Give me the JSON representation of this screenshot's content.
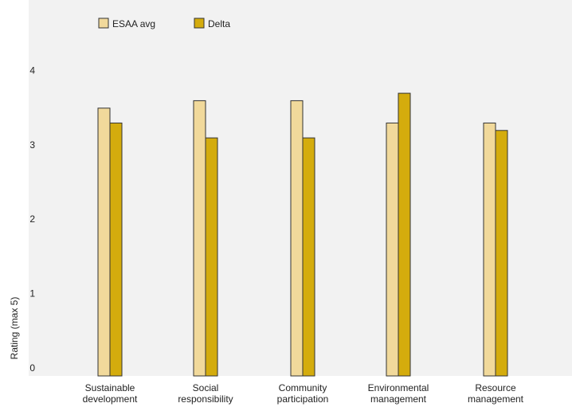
{
  "chart_data": {
    "type": "bar",
    "ylabel": "Rating (max 5)",
    "xlabel": "",
    "ylim": [
      0,
      5
    ],
    "yticks": [
      "0",
      "1",
      "2",
      "3",
      "4"
    ],
    "grid": false,
    "legend_position": "top-left",
    "categories": [
      [
        "Sustainable",
        "development"
      ],
      [
        "Social",
        "responsibility"
      ],
      [
        "Community",
        "participation"
      ],
      [
        "Environmental",
        "management"
      ],
      [
        "Resource",
        "management"
      ]
    ],
    "series": [
      {
        "name": "ESAA avg",
        "color": "#f1d99b",
        "values": [
          3.6,
          3.7,
          3.7,
          3.4,
          3.4
        ]
      },
      {
        "name": "Delta",
        "color": "#d4ac0d",
        "values": [
          3.4,
          3.2,
          3.2,
          3.8,
          3.3
        ]
      }
    ],
    "colors": {
      "plot_background": "#f2f2f2",
      "bar_outline": "#333333",
      "text": "#222222"
    }
  }
}
